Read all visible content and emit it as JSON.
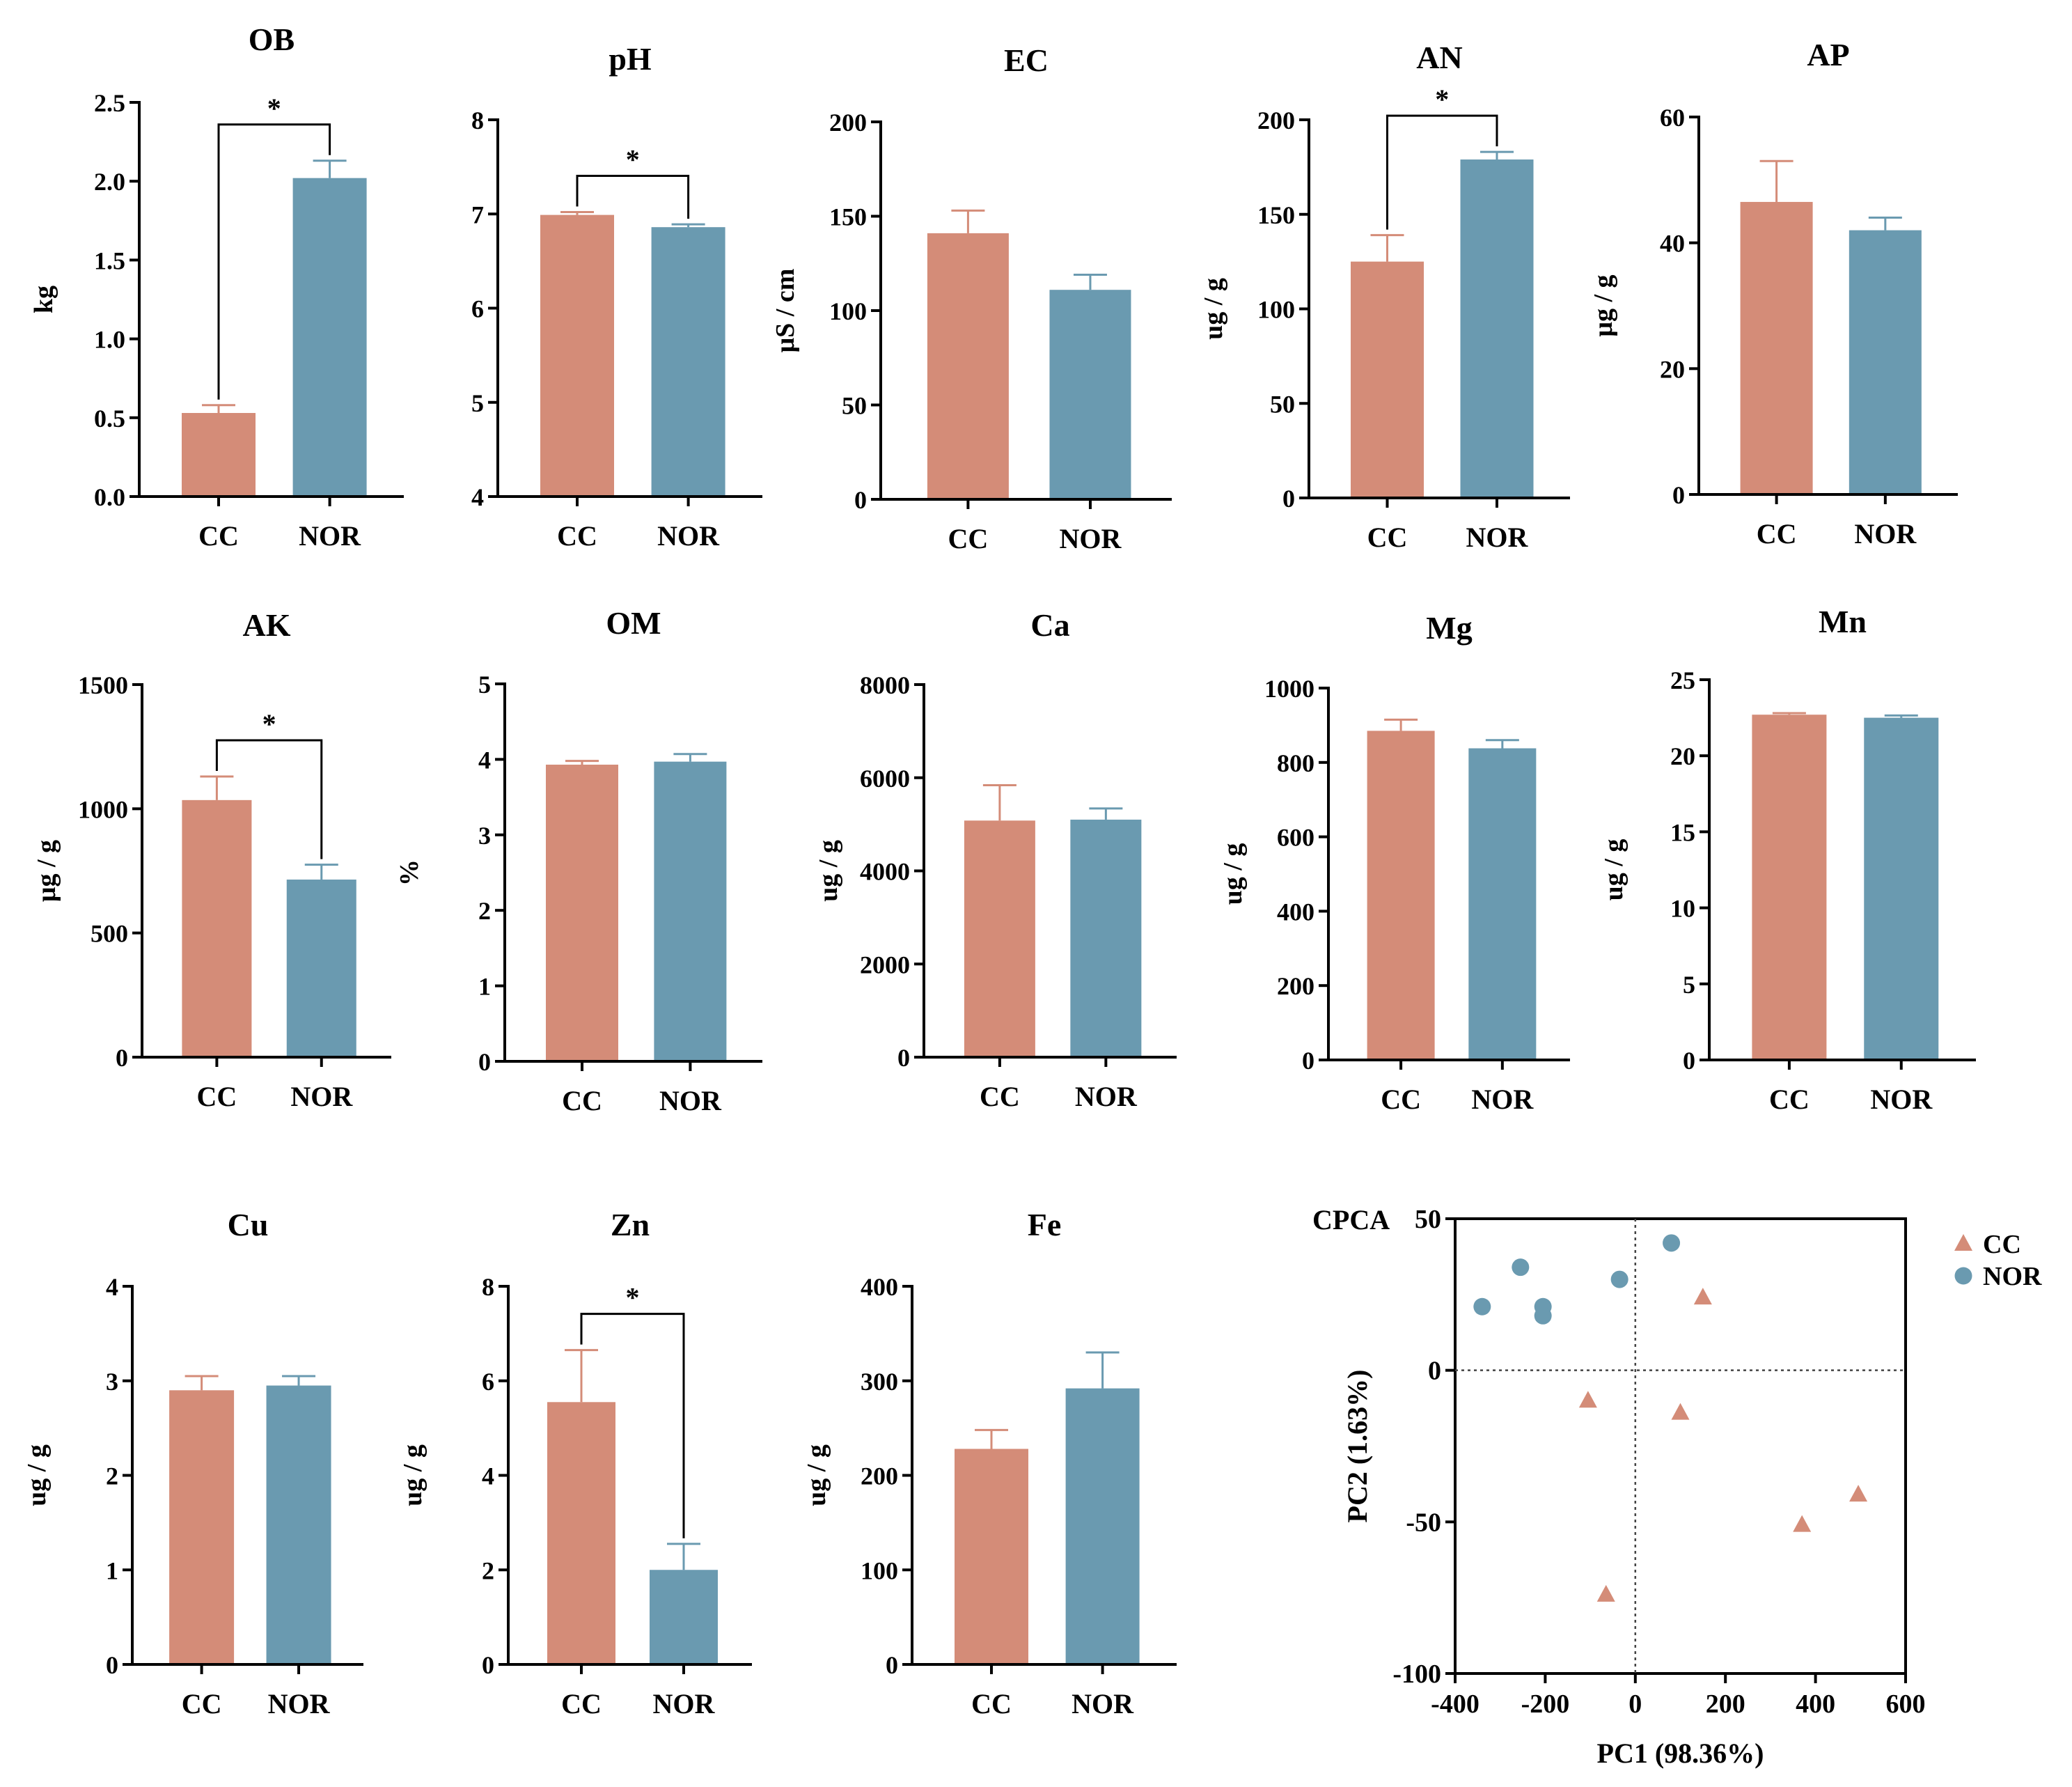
{
  "colors": {
    "cc": "#D48C78",
    "nor": "#6A9AB0",
    "axis": "#000000",
    "sig": "#000000"
  },
  "chart_data": [
    {
      "type": "bar",
      "title": "OB",
      "ylabel": "kg",
      "categories": [
        "CC",
        "NOR"
      ],
      "values": [
        0.53,
        2.02
      ],
      "errors": [
        0.05,
        0.11
      ],
      "ylim": [
        0,
        2.5
      ],
      "yticks": [
        "0.0",
        "0.5",
        "1.0",
        "1.5",
        "2.0",
        "2.5"
      ],
      "sig": "*"
    },
    {
      "type": "bar",
      "title": "pH",
      "ylabel": "",
      "categories": [
        "CC",
        "NOR"
      ],
      "values": [
        6.99,
        6.86
      ],
      "errors": [
        0.03,
        0.03
      ],
      "ylim": [
        4,
        8
      ],
      "yticks": [
        "4",
        "5",
        "6",
        "7",
        "8"
      ],
      "sig": "*"
    },
    {
      "type": "bar",
      "title": "EC",
      "ylabel": "μS / cm",
      "categories": [
        "CC",
        "NOR"
      ],
      "values": [
        141,
        111
      ],
      "errors": [
        12,
        8
      ],
      "ylim": [
        0,
        200
      ],
      "yticks": [
        "0",
        "50",
        "100",
        "150",
        "200"
      ],
      "sig": ""
    },
    {
      "type": "bar",
      "title": "AN",
      "ylabel": "ug / g",
      "categories": [
        "CC",
        "NOR"
      ],
      "values": [
        125,
        179
      ],
      "errors": [
        14,
        4
      ],
      "ylim": [
        0,
        200
      ],
      "yticks": [
        "0",
        "50",
        "100",
        "150",
        "200"
      ],
      "sig": "*"
    },
    {
      "type": "bar",
      "title": "AP",
      "ylabel": "μg / g",
      "categories": [
        "CC",
        "NOR"
      ],
      "values": [
        46.5,
        42
      ],
      "errors": [
        6.5,
        2
      ],
      "ylim": [
        0,
        60
      ],
      "yticks": [
        "0",
        "20",
        "40",
        "60"
      ],
      "sig": ""
    },
    {
      "type": "bar",
      "title": "AK",
      "ylabel": "μg / g",
      "categories": [
        "CC",
        "NOR"
      ],
      "values": [
        1035,
        715
      ],
      "errors": [
        95,
        60
      ],
      "ylim": [
        0,
        1500
      ],
      "yticks": [
        "0",
        "500",
        "1000",
        "1500"
      ],
      "sig": "*"
    },
    {
      "type": "bar",
      "title": "OM",
      "ylabel": "%",
      "categories": [
        "CC",
        "NOR"
      ],
      "values": [
        3.93,
        3.97
      ],
      "errors": [
        0.05,
        0.1
      ],
      "ylim": [
        0,
        5
      ],
      "yticks": [
        "0",
        "1",
        "2",
        "3",
        "4",
        "5"
      ],
      "sig": ""
    },
    {
      "type": "bar",
      "title": "Ca",
      "ylabel": "ug / g",
      "categories": [
        "CC",
        "NOR"
      ],
      "values": [
        5080,
        5100
      ],
      "errors": [
        760,
        240
      ],
      "ylim": [
        0,
        8000
      ],
      "yticks": [
        "0",
        "2000",
        "4000",
        "6000",
        "8000"
      ],
      "sig": ""
    },
    {
      "type": "bar",
      "title": "Mg",
      "ylabel": "ug / g",
      "categories": [
        "CC",
        "NOR"
      ],
      "values": [
        885,
        838
      ],
      "errors": [
        30,
        22
      ],
      "ylim": [
        0,
        1000
      ],
      "yticks": [
        "0",
        "200",
        "400",
        "600",
        "800",
        "1000"
      ],
      "sig": ""
    },
    {
      "type": "bar",
      "title": "Mn",
      "ylabel": "ug / g",
      "categories": [
        "CC",
        "NOR"
      ],
      "values": [
        22.7,
        22.5
      ],
      "errors": [
        0.1,
        0.15
      ],
      "ylim": [
        0,
        25
      ],
      "yticks": [
        "0",
        "5",
        "10",
        "15",
        "20",
        "25"
      ],
      "sig": ""
    },
    {
      "type": "bar",
      "title": "Cu",
      "ylabel": "ug / g",
      "categories": [
        "CC",
        "NOR"
      ],
      "values": [
        2.9,
        2.95
      ],
      "errors": [
        0.15,
        0.1
      ],
      "ylim": [
        0,
        4
      ],
      "yticks": [
        "0",
        "1",
        "2",
        "3",
        "4"
      ],
      "sig": ""
    },
    {
      "type": "bar",
      "title": "Zn",
      "ylabel": "ug / g",
      "categories": [
        "CC",
        "NOR"
      ],
      "values": [
        5.55,
        2.0
      ],
      "errors": [
        1.1,
        0.55
      ],
      "ylim": [
        0,
        8
      ],
      "yticks": [
        "0",
        "2",
        "4",
        "6",
        "8"
      ],
      "sig": "*"
    },
    {
      "type": "bar",
      "title": "Fe",
      "ylabel": "ug / g",
      "categories": [
        "CC",
        "NOR"
      ],
      "values": [
        228,
        292
      ],
      "errors": [
        20,
        38
      ],
      "ylim": [
        0,
        400
      ],
      "yticks": [
        "0",
        "100",
        "200",
        "300",
        "400"
      ],
      "sig": ""
    },
    {
      "type": "scatter",
      "title": "CPCA",
      "xlabel": "PC1 (98.36%)",
      "ylabel": "PC2 (1.63%)",
      "xlim": [
        -400,
        600
      ],
      "ylim": [
        -100,
        50
      ],
      "xticks": [
        "-400",
        "-200",
        "0",
        "200",
        "400",
        "600"
      ],
      "yticks": [
        "-100",
        "-50",
        "0",
        "50"
      ],
      "legend_position": "top-right",
      "series": [
        {
          "name": "CC",
          "marker": "triangle",
          "points": [
            [
              150,
              24
            ],
            [
              -105,
              -10
            ],
            [
              100,
              -14
            ],
            [
              370,
              -51
            ],
            [
              495,
              -41
            ],
            [
              -65,
              -74
            ]
          ]
        },
        {
          "name": "NOR",
          "marker": "circle",
          "points": [
            [
              -255,
              34
            ],
            [
              -340,
              21
            ],
            [
              -205,
              21
            ],
            [
              -205,
              18
            ],
            [
              -35,
              30
            ],
            [
              80,
              42
            ]
          ]
        }
      ]
    }
  ]
}
